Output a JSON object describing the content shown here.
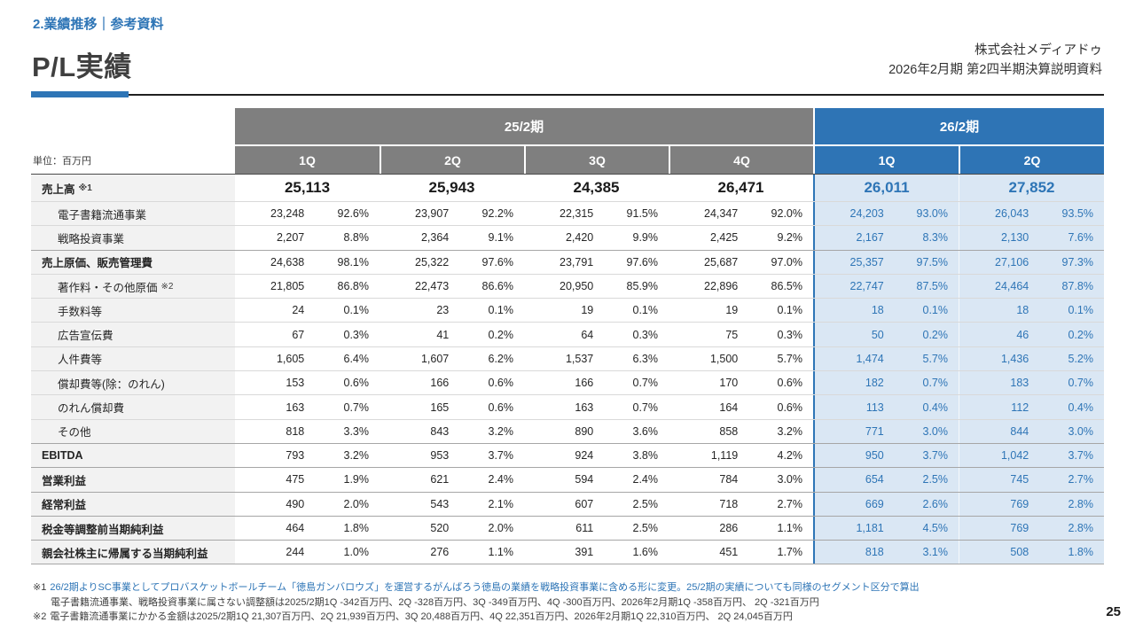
{
  "page": {
    "section_label": "2.業績推移｜参考資料",
    "title": "P/L実績",
    "company": "株式会社メディアドゥ",
    "doc_title": "2026年2月期 第2四半期決算説明資料",
    "page_number": "25"
  },
  "colors": {
    "accent_blue": "#2e75b6",
    "header_gray": "#7f7f7f",
    "light_blue_cell": "#dae7f4",
    "label_bg": "#f2f2f2"
  },
  "table": {
    "unit_label": "単位：百万円",
    "period_groups": [
      {
        "label": "25/2期",
        "quarters": [
          "1Q",
          "2Q",
          "3Q",
          "4Q"
        ]
      },
      {
        "label": "26/2期",
        "quarters": [
          "1Q",
          "2Q"
        ]
      }
    ],
    "rows": [
      {
        "label": "売上高",
        "note": "※1",
        "bold": true,
        "big": true,
        "sep": "dark",
        "values": [
          "25,113",
          "25,943",
          "24,385",
          "26,471",
          "26,011",
          "27,852"
        ]
      },
      {
        "label": "電子書籍流通事業",
        "indent": true,
        "sep": "minor",
        "cells": [
          [
            "23,248",
            "92.6%"
          ],
          [
            "23,907",
            "92.2%"
          ],
          [
            "22,315",
            "91.5%"
          ],
          [
            "24,347",
            "92.0%"
          ],
          [
            "24,203",
            "93.0%"
          ],
          [
            "26,043",
            "93.5%"
          ]
        ]
      },
      {
        "label": "戦略投資事業",
        "indent": true,
        "sep": "minor",
        "cells": [
          [
            "2,207",
            "8.8%"
          ],
          [
            "2,364",
            "9.1%"
          ],
          [
            "2,420",
            "9.9%"
          ],
          [
            "2,425",
            "9.2%"
          ],
          [
            "2,167",
            "8.3%"
          ],
          [
            "2,130",
            "7.6%"
          ]
        ]
      },
      {
        "label": "売上原価、販売管理費",
        "bold": true,
        "sep": "major",
        "cells": [
          [
            "24,638",
            "98.1%"
          ],
          [
            "25,322",
            "97.6%"
          ],
          [
            "23,791",
            "97.6%"
          ],
          [
            "25,687",
            "97.0%"
          ],
          [
            "25,357",
            "97.5%"
          ],
          [
            "27,106",
            "97.3%"
          ]
        ]
      },
      {
        "label": "著作料・その他原価",
        "note": "※2",
        "indent": true,
        "sep": "minor",
        "cells": [
          [
            "21,805",
            "86.8%"
          ],
          [
            "22,473",
            "86.6%"
          ],
          [
            "20,950",
            "85.9%"
          ],
          [
            "22,896",
            "86.5%"
          ],
          [
            "22,747",
            "87.5%"
          ],
          [
            "24,464",
            "87.8%"
          ]
        ]
      },
      {
        "label": "手数料等",
        "indent": true,
        "sep": "minor",
        "cells": [
          [
            "24",
            "0.1%"
          ],
          [
            "23",
            "0.1%"
          ],
          [
            "19",
            "0.1%"
          ],
          [
            "19",
            "0.1%"
          ],
          [
            "18",
            "0.1%"
          ],
          [
            "18",
            "0.1%"
          ]
        ]
      },
      {
        "label": "広告宣伝費",
        "indent": true,
        "sep": "minor",
        "cells": [
          [
            "67",
            "0.3%"
          ],
          [
            "41",
            "0.2%"
          ],
          [
            "64",
            "0.3%"
          ],
          [
            "75",
            "0.3%"
          ],
          [
            "50",
            "0.2%"
          ],
          [
            "46",
            "0.2%"
          ]
        ]
      },
      {
        "label": "人件費等",
        "indent": true,
        "sep": "minor",
        "cells": [
          [
            "1,605",
            "6.4%"
          ],
          [
            "1,607",
            "6.2%"
          ],
          [
            "1,537",
            "6.3%"
          ],
          [
            "1,500",
            "5.7%"
          ],
          [
            "1,474",
            "5.7%"
          ],
          [
            "1,436",
            "5.2%"
          ]
        ]
      },
      {
        "label": "償却費等(除：のれん)",
        "indent": true,
        "sep": "minor",
        "cells": [
          [
            "153",
            "0.6%"
          ],
          [
            "166",
            "0.6%"
          ],
          [
            "166",
            "0.7%"
          ],
          [
            "170",
            "0.6%"
          ],
          [
            "182",
            "0.7%"
          ],
          [
            "183",
            "0.7%"
          ]
        ]
      },
      {
        "label": "のれん償却費",
        "indent": true,
        "sep": "minor",
        "cells": [
          [
            "163",
            "0.7%"
          ],
          [
            "165",
            "0.6%"
          ],
          [
            "163",
            "0.7%"
          ],
          [
            "164",
            "0.6%"
          ],
          [
            "113",
            "0.4%"
          ],
          [
            "112",
            "0.4%"
          ]
        ]
      },
      {
        "label": "その他",
        "indent": true,
        "sep": "minor",
        "cells": [
          [
            "818",
            "3.3%"
          ],
          [
            "843",
            "3.2%"
          ],
          [
            "890",
            "3.6%"
          ],
          [
            "858",
            "3.2%"
          ],
          [
            "771",
            "3.0%"
          ],
          [
            "844",
            "3.0%"
          ]
        ]
      },
      {
        "label": "EBITDA",
        "bold": true,
        "sep": "major",
        "cells": [
          [
            "793",
            "3.2%"
          ],
          [
            "953",
            "3.7%"
          ],
          [
            "924",
            "3.8%"
          ],
          [
            "1,119",
            "4.2%"
          ],
          [
            "950",
            "3.7%"
          ],
          [
            "1,042",
            "3.7%"
          ]
        ]
      },
      {
        "label": "営業利益",
        "bold": true,
        "sep": "major",
        "cells": [
          [
            "475",
            "1.9%"
          ],
          [
            "621",
            "2.4%"
          ],
          [
            "594",
            "2.4%"
          ],
          [
            "784",
            "3.0%"
          ],
          [
            "654",
            "2.5%"
          ],
          [
            "745",
            "2.7%"
          ]
        ]
      },
      {
        "label": "経常利益",
        "bold": true,
        "sep": "major",
        "cells": [
          [
            "490",
            "2.0%"
          ],
          [
            "543",
            "2.1%"
          ],
          [
            "607",
            "2.5%"
          ],
          [
            "718",
            "2.7%"
          ],
          [
            "669",
            "2.6%"
          ],
          [
            "769",
            "2.8%"
          ]
        ]
      },
      {
        "label": "税金等調整前当期純利益",
        "bold": true,
        "sep": "major",
        "cells": [
          [
            "464",
            "1.8%"
          ],
          [
            "520",
            "2.0%"
          ],
          [
            "611",
            "2.5%"
          ],
          [
            "286",
            "1.1%"
          ],
          [
            "1,181",
            "4.5%"
          ],
          [
            "769",
            "2.8%"
          ]
        ]
      },
      {
        "label": "親会社株主に帰属する当期純利益",
        "bold": true,
        "sep": "major",
        "cells": [
          [
            "244",
            "1.0%"
          ],
          [
            "276",
            "1.1%"
          ],
          [
            "391",
            "1.6%"
          ],
          [
            "451",
            "1.7%"
          ],
          [
            "818",
            "3.1%"
          ],
          [
            "508",
            "1.8%"
          ]
        ]
      }
    ]
  },
  "footnotes": [
    {
      "prefix": "※1",
      "text": "26/2期よりSC事業としてプロバスケットボールチーム「徳島ガンバロウズ」を運営するがんばろう徳島の業績を戦略投資事業に含める形に変更。25/2期の実績についても同様のセグメント区分で算出",
      "blue": true
    },
    {
      "prefix": "",
      "text": "電子書籍流通事業、戦略投資事業に属さない調整額は2025/2期1Q -342百万円、2Q -328百万円、3Q -349百万円、4Q -300百万円、2026年2月期1Q -358百万円、 2Q -321百万円",
      "blue": false
    },
    {
      "prefix": "※2",
      "text": "電子書籍流通事業にかかる金額は2025/2期1Q 21,307百万円、2Q 21,939百万円、3Q 20,488百万円、4Q 22,351百万円、2026年2月期1Q 22,310百万円、 2Q 24,045百万円",
      "blue": false
    }
  ]
}
